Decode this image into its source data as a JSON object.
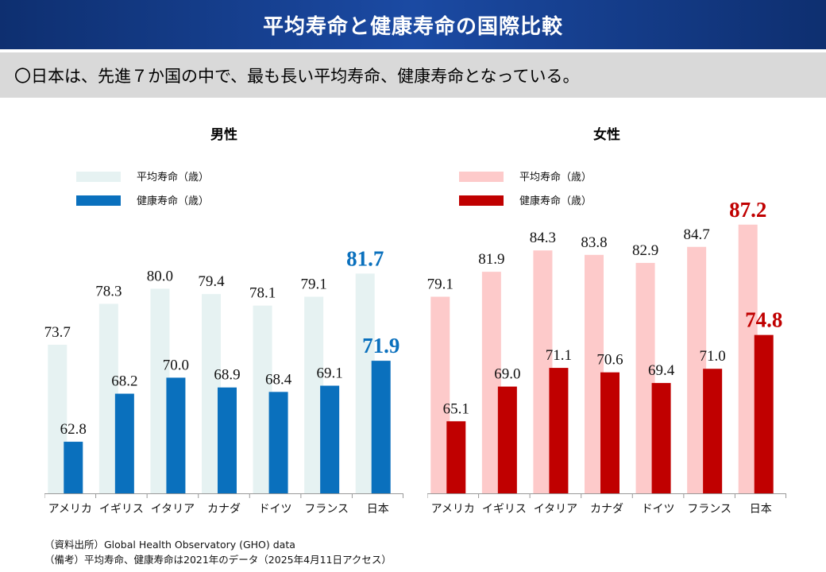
{
  "header": {
    "title": "平均寿命と健康寿命の国際比較"
  },
  "summary": {
    "text": "〇日本は、先進７か国の中で、最も長い平均寿命、健康寿命となっている。"
  },
  "footnotes": {
    "source": "（資料出所）Global Health Observatory (GHO) data",
    "note": "（備考）平均寿命、健康寿命は2021年のデータ（2025年4月11日アクセス）"
  },
  "chart_data": [
    {
      "type": "bar",
      "title": "男性",
      "categories": [
        "アメリカ",
        "イギリス",
        "イタリア",
        "カナダ",
        "ドイツ",
        "フランス",
        "日本"
      ],
      "series": [
        {
          "name": "平均寿命（歳）",
          "values": [
            73.7,
            78.3,
            80.0,
            79.4,
            78.1,
            79.1,
            81.7
          ],
          "color": "#e6f2f2"
        },
        {
          "name": "健康寿命（歳）",
          "values": [
            62.8,
            68.2,
            70.0,
            68.9,
            68.4,
            69.1,
            71.9
          ],
          "color": "#0a70bd"
        }
      ],
      "highlight": {
        "category": "日本",
        "color": "#0a70bd"
      },
      "legend": "top-left",
      "grid": false
    },
    {
      "type": "bar",
      "title": "女性",
      "categories": [
        "アメリカ",
        "イギリス",
        "イタリア",
        "カナダ",
        "ドイツ",
        "フランス",
        "日本"
      ],
      "series": [
        {
          "name": "平均寿命（歳）",
          "values": [
            79.1,
            81.9,
            84.3,
            83.8,
            82.9,
            84.7,
            87.2
          ],
          "color": "#fdcaca"
        },
        {
          "name": "健康寿命（歳）",
          "values": [
            65.1,
            69.0,
            71.1,
            70.6,
            69.4,
            71.0,
            74.8
          ],
          "color": "#c00000"
        }
      ],
      "highlight": {
        "category": "日本",
        "color": "#c00000"
      },
      "legend": "top-left",
      "grid": false
    }
  ]
}
